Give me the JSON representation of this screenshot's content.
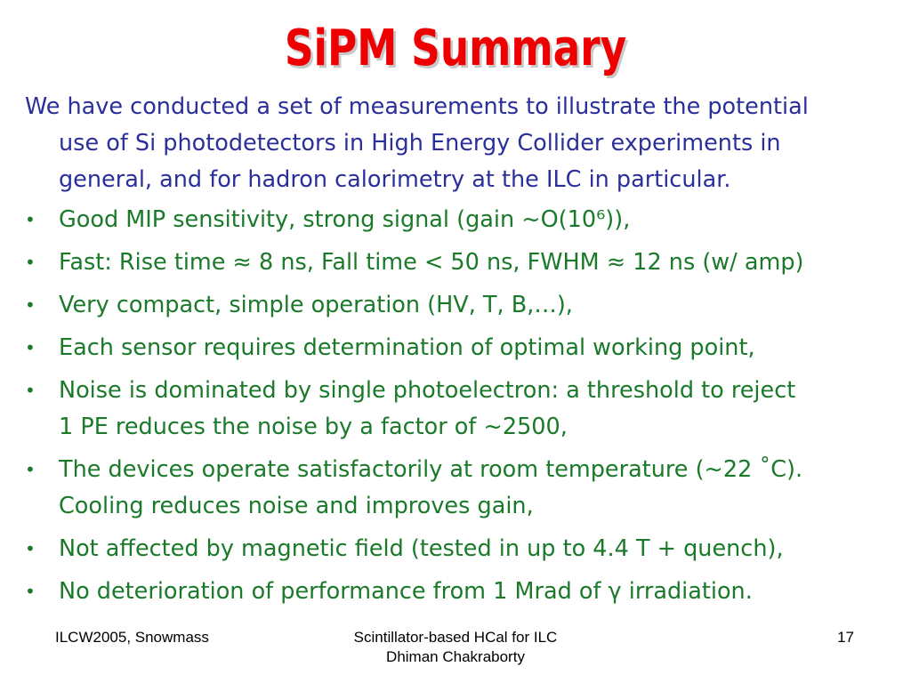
{
  "slide": {
    "title": "SiPM Summary",
    "intro_lines": [
      "We have conducted a set of measurements to illustrate the potential",
      "use of Si photodetectors in High Energy Collider experiments in",
      "general, and for hadron calorimetry at the ILC in particular."
    ],
    "bullets": [
      {
        "lines": [
          "Good MIP sensitivity, strong signal (gain ~O(10⁶)),"
        ]
      },
      {
        "lines": [
          "Fast: Rise time ≈ 8 ns, Fall time < 50 ns, FWHM ≈ 12 ns (w/ amp)"
        ]
      },
      {
        "lines": [
          "Very compact, simple operation (HV, T, B,…),"
        ]
      },
      {
        "lines": [
          "Each sensor requires determination of optimal working point,"
        ]
      },
      {
        "lines": [
          "Noise is dominated by single photoelectron: a threshold to reject",
          "1 PE reduces the noise by a factor of ~2500,"
        ]
      },
      {
        "lines": [
          "The devices operate satisfactorily at room temperature (~22 ˚C).",
          "Cooling reduces noise and improves gain,"
        ]
      },
      {
        "lines": [
          "Not affected by magnetic field (tested in up to 4.4 T + quench),"
        ]
      },
      {
        "lines": [
          "No deterioration of performance from 1 Mrad of γ irradiation."
        ]
      }
    ]
  },
  "footer": {
    "left": "ILCW2005, Snowmass",
    "center_line1": "Scintillator-based HCal for ILC",
    "center_line2": "Dhiman Chakraborty",
    "page_number": "17"
  }
}
